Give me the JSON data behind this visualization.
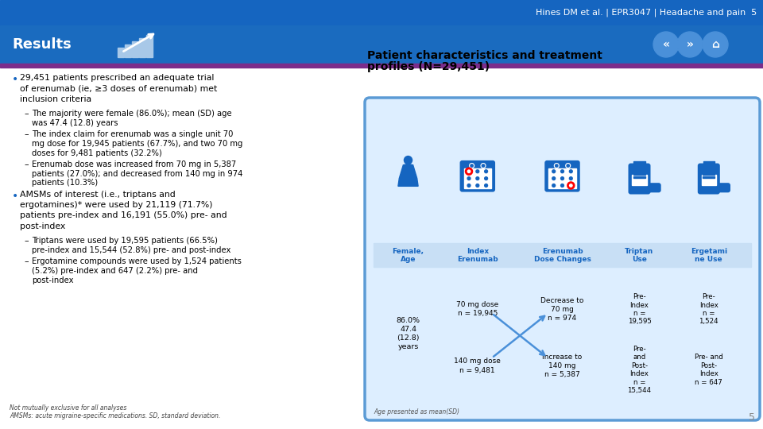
{
  "header_bg": "#1565c0",
  "header_text": "Hines DM et al. | EPR3047 | Headache and pain  5",
  "header_text_color": "#ffffff",
  "results_bg": "#1a6bbf",
  "results_text": "Results",
  "results_text_color": "#ffffff",
  "accent_line_color": "#7b2d8b",
  "main_bg": "#ffffff",
  "page_number": "5",
  "left_bullets": [
    {
      "level": 0,
      "text": "29,451 patients prescribed an adequate trial of erenumab (ie, ≥3 doses of erenumab) met inclusion criteria"
    },
    {
      "level": 1,
      "text": "The majority were female (86.0%); mean (SD) age was 47.4 (12.8) years"
    },
    {
      "level": 1,
      "text": "The index claim for erenumab was a single unit 70 mg dose for 19,945 patients (67.7%), and two 70 mg doses for 9,481 patients (32.2%)"
    },
    {
      "level": 1,
      "text": "Erenumab dose was increased from 70 mg in 5,387 patients (27.0%); and decreased from 140 mg in 974 patients (10.3%)"
    },
    {
      "level": 0,
      "text": "AMSMs of interest (i.e., triptans and ergotamines)* were used by 21,119 (71.7%) patients pre-index and 16,191 (55.0%) pre- and post-index"
    },
    {
      "level": 1,
      "text": "Triptans were used by 19,595 patients (66.5%) pre-index and 15,544 (52.8%) pre- and post-index"
    },
    {
      "level": 1,
      "text": "Ergotamine compounds were used by 1,524 patients (5.2%) pre-index and 647 (2.2%) pre- and post-index"
    }
  ],
  "footnote1": "Not mutually exclusive for all analyses",
  "footnote2": "AMSMs: acute migraine-specific medications. SD, standard deviation.",
  "box_bg": "#ddeeff",
  "box_border": "#5b9bd5",
  "icon_color": "#1565c0",
  "header_row_bg": "#c8dff5",
  "col_headers": [
    "Female,\nAge",
    "Index\nErenumab",
    "Erenumab\nDose Changes",
    "Triptan\nUse",
    "Ergetami\nne Use"
  ],
  "footer_note": "Age presented as mean(SD)"
}
